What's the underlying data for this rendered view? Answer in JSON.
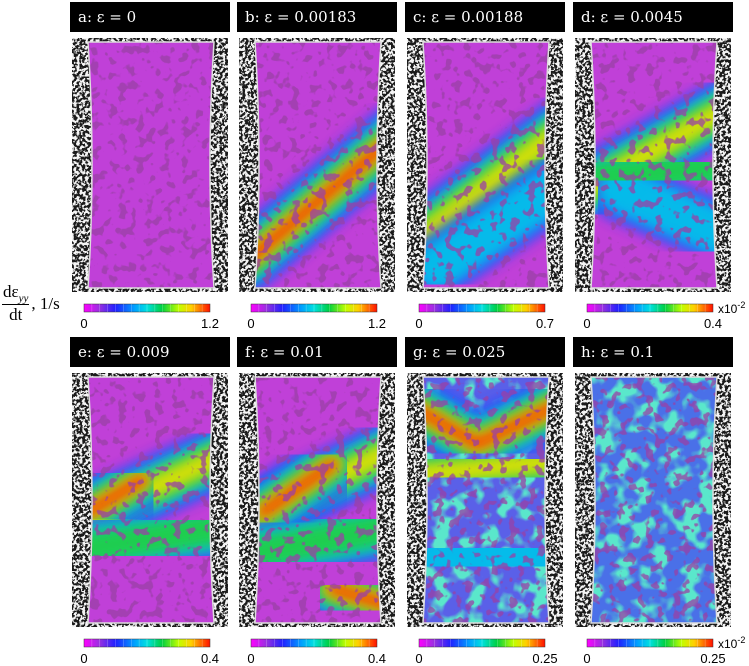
{
  "figure": {
    "y_label": {
      "numerator": "dε",
      "subscript": "yy",
      "denominator": "dt",
      "unit": ", 1/s"
    },
    "panels": [
      {
        "title": "a: ε = 0",
        "colorbar": {
          "min": "0",
          "max": "1.2"
        }
      },
      {
        "title": "b: ε = 0.00183",
        "colorbar": {
          "min": "0",
          "max": "1.2"
        }
      },
      {
        "title": "c: ε = 0.00188",
        "colorbar": {
          "min": "0",
          "max": "0.7"
        }
      },
      {
        "title": "d: ε = 0.0045",
        "colorbar": {
          "min": "0",
          "max": "0.4",
          "multiplier": {
            "base": "x10",
            "exponent": "-2"
          }
        }
      },
      {
        "title": "e: ε = 0.009",
        "colorbar": {
          "min": "0",
          "max": "0.4"
        }
      },
      {
        "title": "f: ε = 0.01",
        "colorbar": {
          "min": "0",
          "max": "0.4"
        }
      },
      {
        "title": "g: ε = 0.025",
        "colorbar": {
          "min": "0",
          "max": "0.25"
        }
      },
      {
        "title": "h: ε = 0.1",
        "colorbar": {
          "min": "0",
          "max": "0.25",
          "multiplier": {
            "base": "x10",
            "exponent": "-2"
          }
        }
      }
    ]
  }
}
